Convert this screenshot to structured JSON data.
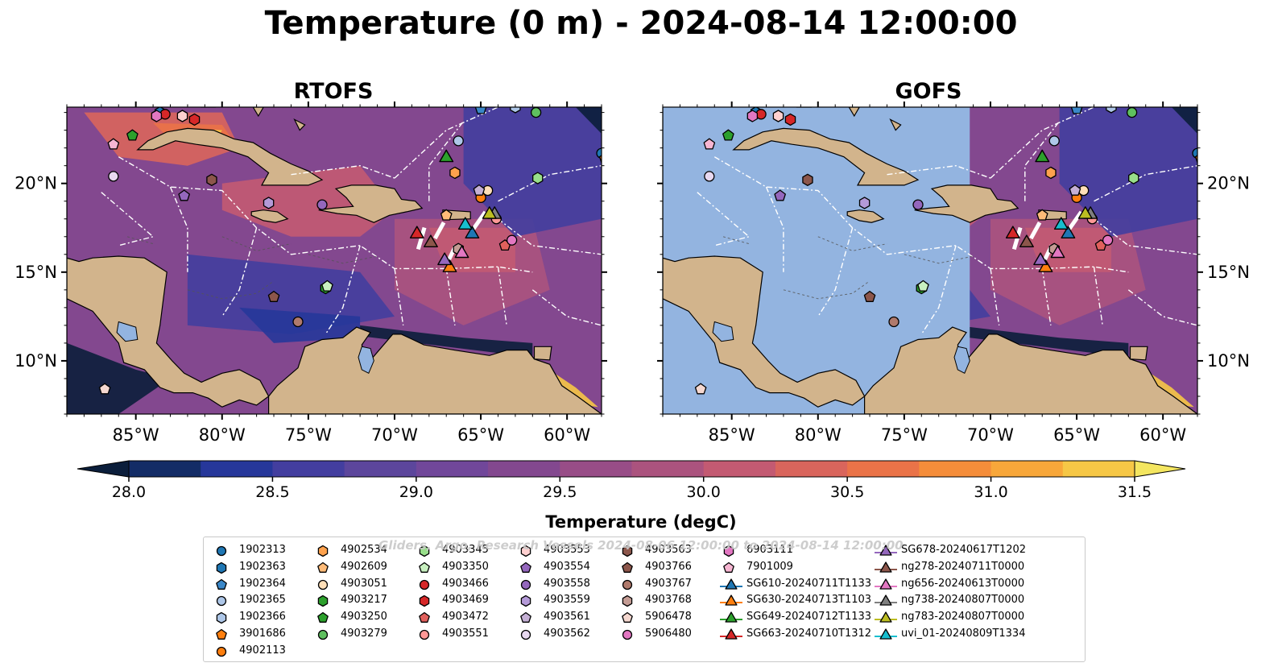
{
  "figure": {
    "title": "Temperature (0 m) - 2024-08-14 12:00:00",
    "panels": [
      {
        "name": "RTOFS",
        "filled": true
      },
      {
        "name": "GOFS",
        "filled": true
      }
    ]
  },
  "chart_data": {
    "type": "heatmap",
    "title": "Temperature (0 m) - 2024-08-14 12:00:00",
    "x_ticks": [
      "85°W",
      "80°W",
      "75°W",
      "70°W",
      "65°W",
      "60°W"
    ],
    "x_tick_values": [
      -85,
      -80,
      -75,
      -70,
      -65,
      -60
    ],
    "y_ticks": [
      "10°N",
      "15°N",
      "20°N"
    ],
    "y_tick_values": [
      10,
      15,
      20
    ],
    "xlim": [
      -89,
      -58
    ],
    "ylim": [
      7,
      24.3
    ],
    "colorbar": {
      "label": "Temperature (degC)",
      "range": [
        28.0,
        31.5
      ],
      "ticks": [
        "28.0",
        "28.5",
        "29.0",
        "29.5",
        "30.0",
        "30.5",
        "31.0",
        "31.5"
      ],
      "tick_values": [
        28.0,
        28.5,
        29.0,
        29.5,
        30.0,
        30.5,
        31.0,
        31.5
      ],
      "colors": [
        "#0b1e3b",
        "#132c66",
        "#26379a",
        "#433e9f",
        "#5c469c",
        "#71479a",
        "#83488f",
        "#984d87",
        "#ab537e",
        "#c35a72",
        "#d9655c",
        "#ea7348",
        "#f58d3a",
        "#f8a73a",
        "#f6c746",
        "#f4e660"
      ]
    },
    "watermark": "Gliders, Argo, Research Vessels 2024-08-06 12:00:00 to 2024-08-14 12:00:00",
    "legend": [
      {
        "label": "1902313",
        "marker": "circle",
        "color": "#1f77b4"
      },
      {
        "label": "1902363",
        "marker": "hexagon",
        "color": "#1f77b4"
      },
      {
        "label": "1902364",
        "marker": "pentagon",
        "color": "#3a87c8"
      },
      {
        "label": "1902365",
        "marker": "circle",
        "color": "#aec7e8"
      },
      {
        "label": "1902366",
        "marker": "hexagon",
        "color": "#aec7e8"
      },
      {
        "label": "3901686",
        "marker": "pentagon",
        "color": "#ff7f0e"
      },
      {
        "label": "4902113",
        "marker": "circle",
        "color": "#ff7f0e"
      },
      {
        "label": "4902534",
        "marker": "hexagon",
        "color": "#ffa24d"
      },
      {
        "label": "4902609",
        "marker": "pentagon",
        "color": "#ffbb78"
      },
      {
        "label": "4903051",
        "marker": "circle",
        "color": "#ffdfb8"
      },
      {
        "label": "4903217",
        "marker": "hexagon",
        "color": "#2ca02c"
      },
      {
        "label": "4903250",
        "marker": "pentagon",
        "color": "#2ca02c"
      },
      {
        "label": "4903279",
        "marker": "circle",
        "color": "#5fc05f"
      },
      {
        "label": "4903345",
        "marker": "hexagon",
        "color": "#98df8a"
      },
      {
        "label": "4903350",
        "marker": "pentagon",
        "color": "#c8f0c0"
      },
      {
        "label": "4903466",
        "marker": "circle",
        "color": "#d62728"
      },
      {
        "label": "4903469",
        "marker": "hexagon",
        "color": "#d62728"
      },
      {
        "label": "4903472",
        "marker": "pentagon",
        "color": "#e0605c"
      },
      {
        "label": "4903551",
        "marker": "circle",
        "color": "#ff9896"
      },
      {
        "label": "4903553",
        "marker": "hexagon",
        "color": "#ffd0d0"
      },
      {
        "label": "4903554",
        "marker": "pentagon",
        "color": "#9467bd"
      },
      {
        "label": "4903558",
        "marker": "circle",
        "color": "#9467bd"
      },
      {
        "label": "4903559",
        "marker": "hexagon",
        "color": "#b49ad8"
      },
      {
        "label": "4903561",
        "marker": "pentagon",
        "color": "#c5b0d5"
      },
      {
        "label": "4903562",
        "marker": "circle",
        "color": "#e8d8f0"
      },
      {
        "label": "4903563",
        "marker": "hexagon",
        "color": "#8c564b"
      },
      {
        "label": "4903766",
        "marker": "pentagon",
        "color": "#8c564b"
      },
      {
        "label": "4903767",
        "marker": "circle",
        "color": "#b07a6c"
      },
      {
        "label": "4903768",
        "marker": "hexagon",
        "color": "#c49c94"
      },
      {
        "label": "5906478",
        "marker": "pentagon",
        "color": "#f5d8d0"
      },
      {
        "label": "5906480",
        "marker": "circle",
        "color": "#e377c2"
      },
      {
        "label": "6903111",
        "marker": "hexagon",
        "color": "#e377c2"
      },
      {
        "label": "7901009",
        "marker": "pentagon",
        "color": "#f7b6d2"
      },
      {
        "label": "SG610-20240711T1133",
        "marker": "triangle-line",
        "color": "#1f77b4"
      },
      {
        "label": "SG630-20240713T1103",
        "marker": "triangle-line",
        "color": "#ff7f0e"
      },
      {
        "label": "SG649-20240712T1133",
        "marker": "triangle-line",
        "color": "#2ca02c"
      },
      {
        "label": "SG663-20240710T1312",
        "marker": "triangle-line",
        "color": "#d62728"
      },
      {
        "label": "SG678-20240617T1202",
        "marker": "triangle-line",
        "color": "#9467bd"
      },
      {
        "label": "ng278-20240711T0000",
        "marker": "triangle-line",
        "color": "#8c564b"
      },
      {
        "label": "ng656-20240613T0000",
        "marker": "triangle-line",
        "color": "#e377c2"
      },
      {
        "label": "ng738-20240807T0000",
        "marker": "triangle-line",
        "color": "#7f7f7f"
      },
      {
        "label": "ng783-20240807T0000",
        "marker": "triangle-line",
        "color": "#bcbd22"
      },
      {
        "label": "uvi_01-20240809T1334",
        "marker": "triangle-line",
        "color": "#17becf"
      }
    ],
    "floats": [
      {
        "id": "1902313",
        "lon": -58.0,
        "lat": 21.7
      },
      {
        "id": "1902363",
        "lon": -83.6,
        "lat": 24.0
      },
      {
        "id": "1902364",
        "lon": -65.0,
        "lat": 24.2
      },
      {
        "id": "1902365",
        "lon": -66.3,
        "lat": 22.4
      },
      {
        "id": "1902366",
        "lon": -63.0,
        "lat": 24.3
      },
      {
        "id": "3901686",
        "lon": -57.8,
        "lat": 21.4
      },
      {
        "id": "4902113",
        "lon": -65.0,
        "lat": 19.2
      },
      {
        "id": "4902534",
        "lon": -66.5,
        "lat": 20.6
      },
      {
        "id": "4902609",
        "lon": -67.0,
        "lat": 18.2
      },
      {
        "id": "4903051",
        "lon": -64.6,
        "lat": 19.6
      },
      {
        "id": "4903217",
        "lon": -74.0,
        "lat": 14.1
      },
      {
        "id": "4903250",
        "lon": -85.2,
        "lat": 22.7
      },
      {
        "id": "4903279",
        "lon": -61.8,
        "lat": 24.0
      },
      {
        "id": "4903345",
        "lon": -61.7,
        "lat": 20.3
      },
      {
        "id": "4903350",
        "lon": -73.9,
        "lat": 14.2
      },
      {
        "id": "4903466",
        "lon": -83.3,
        "lat": 23.9
      },
      {
        "id": "4903469",
        "lon": -81.6,
        "lat": 23.6
      },
      {
        "id": "4903472",
        "lon": -63.6,
        "lat": 16.5
      },
      {
        "id": "4903551",
        "lon": -64.1,
        "lat": 18.0
      },
      {
        "id": "4903553",
        "lon": -82.3,
        "lat": 23.8
      },
      {
        "id": "4903554",
        "lon": -82.2,
        "lat": 19.3
      },
      {
        "id": "4903558",
        "lon": -74.2,
        "lat": 18.8
      },
      {
        "id": "4903559",
        "lon": -77.3,
        "lat": 18.9
      },
      {
        "id": "4903561",
        "lon": -65.1,
        "lat": 19.6
      },
      {
        "id": "4903562",
        "lon": -86.3,
        "lat": 20.4
      },
      {
        "id": "4903563",
        "lon": -80.6,
        "lat": 20.2
      },
      {
        "id": "4903766",
        "lon": -77.0,
        "lat": 13.6
      },
      {
        "id": "4903767",
        "lon": -75.6,
        "lat": 12.2
      },
      {
        "id": "4903768",
        "lon": -66.3,
        "lat": 16.3
      },
      {
        "id": "5906478",
        "lon": -86.8,
        "lat": 8.4
      },
      {
        "id": "5906480",
        "lon": -63.2,
        "lat": 16.8
      },
      {
        "id": "6903111",
        "lon": -83.8,
        "lat": 23.8
      },
      {
        "id": "7901009",
        "lon": -86.3,
        "lat": 22.2
      }
    ],
    "gliders": [
      {
        "id": "SG610-20240711T1133",
        "lon": -65.5,
        "lat": 17.1
      },
      {
        "id": "SG630-20240713T1103",
        "lon": -66.8,
        "lat": 15.2
      },
      {
        "id": "SG649-20240712T1133",
        "lon": -67.0,
        "lat": 21.4
      },
      {
        "id": "SG663-20240710T1312",
        "lon": -68.7,
        "lat": 17.1
      },
      {
        "id": "SG678-20240617T1202",
        "lon": -67.1,
        "lat": 15.6
      },
      {
        "id": "ng278-20240711T0000",
        "lon": -67.9,
        "lat": 16.6
      },
      {
        "id": "ng656-20240613T0000",
        "lon": -66.1,
        "lat": 16.0
      },
      {
        "id": "ng738-20240807T0000",
        "lon": -64.2,
        "lat": 18.2
      },
      {
        "id": "ng783-20240807T0000",
        "lon": -64.5,
        "lat": 18.2
      },
      {
        "id": "uvi_01-20240809T1334",
        "lon": -65.9,
        "lat": 17.6
      }
    ]
  }
}
